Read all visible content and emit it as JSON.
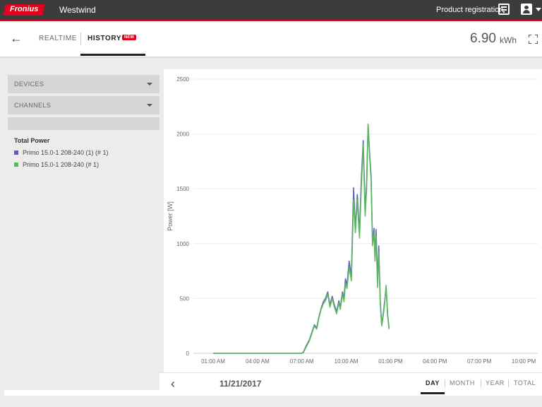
{
  "header": {
    "logo_text": "Fronius",
    "site_name": "Westwind",
    "product_registration": "Product registration",
    "brand_color": "#e2001a"
  },
  "nav": {
    "tab_realtime": "REALTIME",
    "tab_history": "HISTORY",
    "history_badge": "NEW",
    "energy_value": "6.90",
    "energy_unit": "kWh"
  },
  "sidebar": {
    "devices_label": "DEVICES",
    "channels_label": "CHANNELS",
    "legend_title": "Total Power",
    "legend_items": [
      {
        "label": "Primo 15.0-1 208-240 (1) (# 1)",
        "color": "#5b5fb0"
      },
      {
        "label": "Primo 15.0-1 208-240 (# 1)",
        "color": "#5cb85c"
      }
    ]
  },
  "footer": {
    "date": "11/21/2017",
    "periods": [
      "DAY",
      "MONTH",
      "YEAR",
      "TOTAL"
    ],
    "active_period": "DAY"
  },
  "chart_data": {
    "type": "line",
    "ylabel": "Power [W]",
    "xlabel": "",
    "ylim": [
      0,
      2500
    ],
    "yticks": [
      "0",
      "500",
      "1000",
      "1500",
      "2000",
      "2500"
    ],
    "xticks": [
      "01:00 AM",
      "04:00 AM",
      "07:00 AM",
      "10:00 AM",
      "01:00 PM",
      "04:00 PM",
      "07:00 PM",
      "10:00 PM"
    ],
    "xlim_hours": [
      0,
      23
    ],
    "grid": true,
    "series": [
      {
        "name": "Primo 15.0-1 208-240 (1) (# 1)",
        "color": "#5b5fb0",
        "points": [
          [
            1,
            0
          ],
          [
            7,
            0
          ],
          [
            7.1,
            10
          ],
          [
            7.3,
            70
          ],
          [
            7.5,
            120
          ],
          [
            7.7,
            200
          ],
          [
            7.85,
            260
          ],
          [
            8.0,
            230
          ],
          [
            8.15,
            330
          ],
          [
            8.3,
            410
          ],
          [
            8.45,
            470
          ],
          [
            8.6,
            500
          ],
          [
            8.75,
            560
          ],
          [
            8.9,
            440
          ],
          [
            9.05,
            520
          ],
          [
            9.2,
            440
          ],
          [
            9.35,
            380
          ],
          [
            9.5,
            480
          ],
          [
            9.6,
            420
          ],
          [
            9.75,
            560
          ],
          [
            9.85,
            500
          ],
          [
            9.95,
            680
          ],
          [
            10.05,
            620
          ],
          [
            10.2,
            840
          ],
          [
            10.35,
            700
          ],
          [
            10.5,
            1510
          ],
          [
            10.62,
            1130
          ],
          [
            10.75,
            1450
          ],
          [
            10.9,
            1100
          ],
          [
            11.02,
            1580
          ],
          [
            11.15,
            1940
          ],
          [
            11.28,
            1300
          ],
          [
            11.38,
            1560
          ],
          [
            11.48,
            2080
          ],
          [
            11.58,
            1830
          ],
          [
            11.68,
            1620
          ],
          [
            11.78,
            1000
          ],
          [
            11.88,
            1140
          ],
          [
            11.95,
            870
          ],
          [
            12.02,
            1130
          ],
          [
            12.12,
            650
          ],
          [
            12.2,
            980
          ],
          [
            12.3,
            480
          ],
          [
            12.4,
            260
          ],
          [
            12.5,
            360
          ],
          [
            12.6,
            470
          ],
          [
            12.7,
            600
          ],
          [
            12.8,
            360
          ],
          [
            12.9,
            230
          ]
        ]
      },
      {
        "name": "Primo 15.0-1 208-240 (# 1)",
        "color": "#5cb85c",
        "points": [
          [
            1,
            0
          ],
          [
            7,
            0
          ],
          [
            7.1,
            5
          ],
          [
            7.3,
            60
          ],
          [
            7.5,
            110
          ],
          [
            7.7,
            190
          ],
          [
            7.85,
            250
          ],
          [
            8.0,
            220
          ],
          [
            8.15,
            320
          ],
          [
            8.3,
            400
          ],
          [
            8.45,
            450
          ],
          [
            8.6,
            480
          ],
          [
            8.75,
            540
          ],
          [
            8.9,
            420
          ],
          [
            9.05,
            500
          ],
          [
            9.2,
            420
          ],
          [
            9.35,
            360
          ],
          [
            9.5,
            460
          ],
          [
            9.6,
            400
          ],
          [
            9.75,
            540
          ],
          [
            9.85,
            470
          ],
          [
            9.95,
            630
          ],
          [
            10.05,
            590
          ],
          [
            10.2,
            780
          ],
          [
            10.35,
            660
          ],
          [
            10.5,
            1400
          ],
          [
            10.62,
            1100
          ],
          [
            10.75,
            1400
          ],
          [
            10.9,
            1050
          ],
          [
            11.02,
            1500
          ],
          [
            11.15,
            1900
          ],
          [
            11.28,
            1250
          ],
          [
            11.38,
            1500
          ],
          [
            11.48,
            2090
          ],
          [
            11.58,
            1800
          ],
          [
            11.68,
            1580
          ],
          [
            11.78,
            980
          ],
          [
            11.88,
            1100
          ],
          [
            11.95,
            840
          ],
          [
            12.02,
            1070
          ],
          [
            12.12,
            600
          ],
          [
            12.2,
            920
          ],
          [
            12.3,
            450
          ],
          [
            12.4,
            250
          ],
          [
            12.5,
            340
          ],
          [
            12.6,
            450
          ],
          [
            12.7,
            620
          ],
          [
            12.8,
            350
          ],
          [
            12.9,
            220
          ]
        ]
      }
    ]
  }
}
